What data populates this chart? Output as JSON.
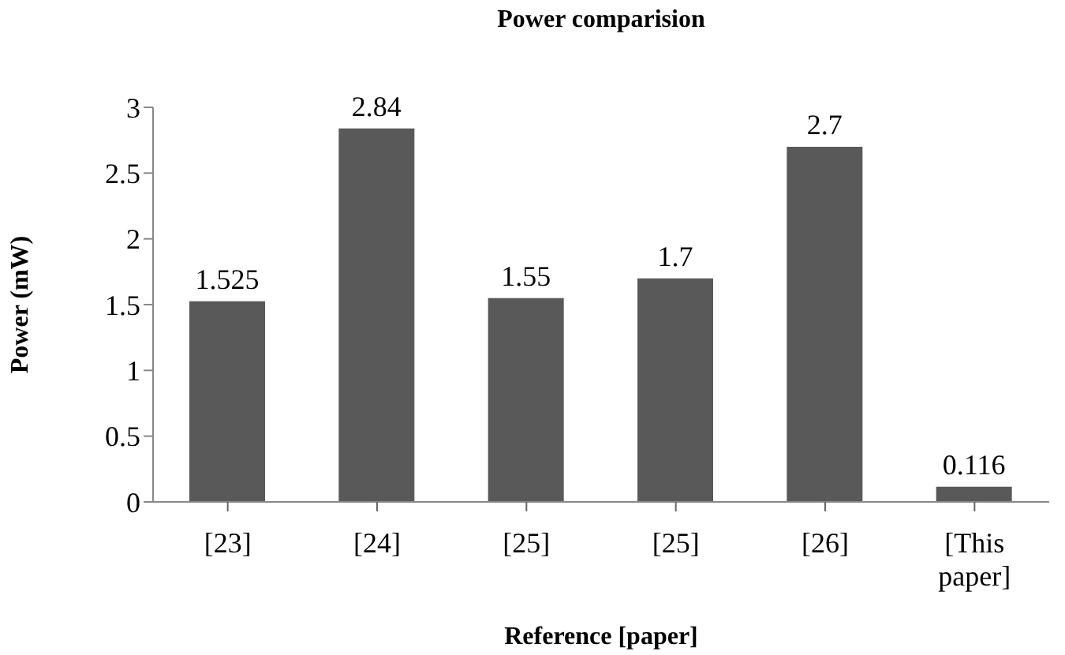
{
  "chart_data": {
    "type": "bar",
    "title": "Power comparision",
    "xlabel": "Reference [paper]",
    "ylabel": "Power (mW)",
    "categories": [
      "[23]",
      "[24]",
      "[25]",
      "[25]",
      "[26]",
      "[This paper]"
    ],
    "values": [
      1.525,
      2.84,
      1.55,
      1.7,
      2.7,
      0.116
    ],
    "color": "#595959",
    "ylim": [
      0,
      3
    ],
    "yticks": [
      0,
      0.5,
      1,
      1.5,
      2,
      2.5,
      3
    ],
    "grid": false,
    "data_labels": true,
    "legend": false
  }
}
